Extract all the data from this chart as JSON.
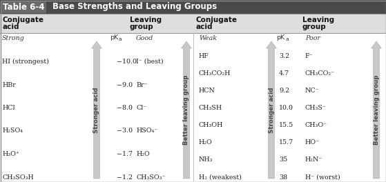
{
  "title_label": "Table 6-4",
  "title_text": "Base Strengths and Leaving Groups",
  "title_box_bg": "#5a5a5a",
  "title_text_bg": "#c8c8c8",
  "header_bg": "#e0e0e0",
  "body_bg": "#ffffff",
  "left_acids": [
    "HI (strongest)",
    "HBr",
    "HCl",
    "H₂SO₄",
    "H₃O⁺",
    "CH₃SO₃H"
  ],
  "left_pkas": [
    "−10.0",
    "−9.0",
    "−8.0",
    "−3.0",
    "−1.7",
    "−1.2"
  ],
  "left_leaving": [
    "I⁻ (best)",
    "Br⁻",
    "Cl⁻",
    "HSO₄⁻",
    "H₂O",
    "CH₃SO₃⁻"
  ],
  "right_acids": [
    "HF",
    "CH₃CO₂H",
    "HCN",
    "CH₃SH",
    "CH₃OH",
    "H₂O",
    "NH₃",
    "H₂ (weakest)"
  ],
  "right_pkas": [
    "3.2",
    "4.7",
    "9.2",
    "10.0",
    "15.5",
    "15.7",
    "35",
    "38"
  ],
  "right_leaving": [
    "F⁻",
    "CH₃CO₂⁻",
    "NC⁻",
    "CH₃S⁻",
    "CH₃O⁻",
    "HO⁻",
    "H₂N⁻",
    "H⁻ (worst)"
  ],
  "arrow_fill": "#c8c8c8",
  "arrow_edge": "#aaaaaa",
  "font_size": 6.8,
  "header_font_size": 7.5,
  "title_font_size": 8.5
}
